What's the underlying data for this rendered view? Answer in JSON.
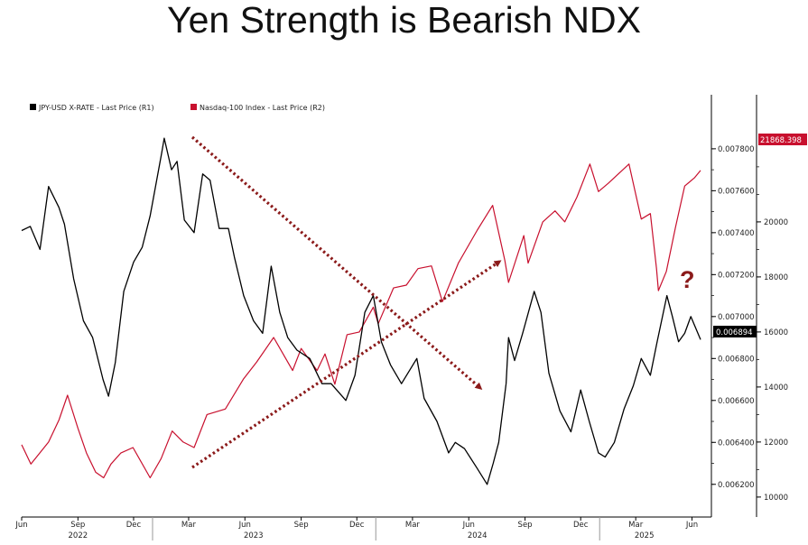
{
  "chart_data": {
    "type": "line",
    "title": "Yen Strength is Bearish NDX",
    "x_start": "2022-06-01",
    "x_end": "2025-06-15",
    "x_tick_labels": [
      {
        "date": "2022-06-01",
        "label": "Jun"
      },
      {
        "date": "2022-09-01",
        "label": "Sep"
      },
      {
        "date": "2022-12-01",
        "label": "Dec"
      },
      {
        "date": "2023-03-01",
        "label": "Mar"
      },
      {
        "date": "2023-06-01",
        "label": "Jun"
      },
      {
        "date": "2023-09-01",
        "label": "Sep"
      },
      {
        "date": "2023-12-01",
        "label": "Dec"
      },
      {
        "date": "2024-03-01",
        "label": "Mar"
      },
      {
        "date": "2024-06-01",
        "label": "Jun"
      },
      {
        "date": "2024-09-01",
        "label": "Sep"
      },
      {
        "date": "2024-12-01",
        "label": "Dec"
      },
      {
        "date": "2025-03-01",
        "label": "Mar"
      },
      {
        "date": "2025-06-01",
        "label": "Jun"
      }
    ],
    "year_labels": [
      {
        "date": "2022-09-01",
        "label": "2022"
      },
      {
        "date": "2023-06-15",
        "label": "2023"
      },
      {
        "date": "2024-06-15",
        "label": "2024"
      },
      {
        "date": "2025-03-15",
        "label": "2025"
      }
    ],
    "y_right_inner": {
      "ylim": [
        0.0061,
        0.00795
      ],
      "ticks": [
        "0.007800",
        "0.007600",
        "0.007400",
        "0.007200",
        "0.007000",
        "0.006800",
        "0.006600",
        "0.006400",
        "0.006200"
      ]
    },
    "y_right_outer": {
      "ylim": [
        9700,
        23800
      ],
      "ticks": [
        "20000",
        "18000",
        "16000",
        "14000",
        "12000",
        "10000"
      ]
    },
    "legend": [
      {
        "label": "JPY-USD X-RATE - Last Price (R1)",
        "color": "#000000"
      },
      {
        "label": "Nasdaq-100 Index - Last Price (R2)",
        "color": "#c8102e"
      }
    ],
    "last_values": {
      "jpy": "0.006894",
      "ndx": "21868.398"
    },
    "annotation": "?",
    "series": [
      {
        "name": "JPY-USD X-RATE - Last Price (R1)",
        "axis": "inner",
        "color": "#000000",
        "points": [
          [
            "2022-06-01",
            0.00741
          ],
          [
            "2022-06-15",
            0.00743
          ],
          [
            "2022-07-01",
            0.00732
          ],
          [
            "2022-07-15",
            0.00762
          ],
          [
            "2022-08-01",
            0.00752
          ],
          [
            "2022-08-10",
            0.00744
          ],
          [
            "2022-08-25",
            0.00718
          ],
          [
            "2022-09-10",
            0.00698
          ],
          [
            "2022-09-25",
            0.0069
          ],
          [
            "2022-10-12",
            0.0067
          ],
          [
            "2022-10-21",
            0.00662
          ],
          [
            "2022-11-01",
            0.00678
          ],
          [
            "2022-11-15",
            0.00712
          ],
          [
            "2022-12-01",
            0.00726
          ],
          [
            "2022-12-15",
            0.00733
          ],
          [
            "2022-12-28",
            0.00748
          ],
          [
            "2023-01-16",
            0.00778
          ],
          [
            "2023-01-20",
            0.00785
          ],
          [
            "2023-02-01",
            0.0077
          ],
          [
            "2023-02-10",
            0.00774
          ],
          [
            "2023-02-22",
            0.00746
          ],
          [
            "2023-03-10",
            0.0074
          ],
          [
            "2023-03-24",
            0.00768
          ],
          [
            "2023-04-05",
            0.00765
          ],
          [
            "2023-04-20",
            0.00742
          ],
          [
            "2023-05-05",
            0.00742
          ],
          [
            "2023-05-15",
            0.00728
          ],
          [
            "2023-05-30",
            0.0071
          ],
          [
            "2023-06-15",
            0.00698
          ],
          [
            "2023-06-30",
            0.00692
          ],
          [
            "2023-07-14",
            0.00724
          ],
          [
            "2023-07-28",
            0.00702
          ],
          [
            "2023-08-10",
            0.0069
          ],
          [
            "2023-08-25",
            0.00684
          ],
          [
            "2023-09-15",
            0.0068
          ],
          [
            "2023-10-05",
            0.00668
          ],
          [
            "2023-10-20",
            0.00668
          ],
          [
            "2023-11-13",
            0.0066
          ],
          [
            "2023-11-28",
            0.00672
          ],
          [
            "2023-12-14",
            0.00702
          ],
          [
            "2023-12-28",
            0.0071
          ],
          [
            "2024-01-10",
            0.00688
          ],
          [
            "2024-01-25",
            0.00677
          ],
          [
            "2024-02-12",
            0.00668
          ],
          [
            "2024-03-08",
            0.0068
          ],
          [
            "2024-03-20",
            0.00661
          ],
          [
            "2024-04-10",
            0.0065
          ],
          [
            "2024-04-29",
            0.00635
          ],
          [
            "2024-05-10",
            0.0064
          ],
          [
            "2024-05-25",
            0.00637
          ],
          [
            "2024-06-14",
            0.00628
          ],
          [
            "2024-07-01",
            0.0062
          ],
          [
            "2024-07-11",
            0.0063
          ],
          [
            "2024-07-20",
            0.0064
          ],
          [
            "2024-08-01",
            0.00668
          ],
          [
            "2024-08-05",
            0.0069
          ],
          [
            "2024-08-15",
            0.00679
          ],
          [
            "2024-08-28",
            0.00692
          ],
          [
            "2024-09-16",
            0.00712
          ],
          [
            "2024-09-27",
            0.00702
          ],
          [
            "2024-10-10",
            0.00673
          ],
          [
            "2024-10-28",
            0.00655
          ],
          [
            "2024-11-15",
            0.00645
          ],
          [
            "2024-12-01",
            0.00665
          ],
          [
            "2024-12-15",
            0.0065
          ],
          [
            "2024-12-30",
            0.00635
          ],
          [
            "2025-01-10",
            0.00633
          ],
          [
            "2025-01-25",
            0.0064
          ],
          [
            "2025-02-10",
            0.00656
          ],
          [
            "2025-02-25",
            0.00667
          ],
          [
            "2025-03-10",
            0.0068
          ],
          [
            "2025-03-25",
            0.00672
          ],
          [
            "2025-04-05",
            0.00688
          ],
          [
            "2025-04-21",
            0.0071
          ],
          [
            "2025-04-30",
            0.007
          ],
          [
            "2025-05-10",
            0.00688
          ],
          [
            "2025-05-20",
            0.00692
          ],
          [
            "2025-05-30",
            0.007
          ],
          [
            "2025-06-15",
            0.00689
          ]
        ]
      },
      {
        "name": "Nasdaq-100 Index - Last Price (R2)",
        "axis": "outer",
        "color": "#c8102e",
        "points": [
          [
            "2022-06-01",
            11900
          ],
          [
            "2022-06-16",
            11200
          ],
          [
            "2022-07-15",
            12000
          ],
          [
            "2022-08-01",
            12800
          ],
          [
            "2022-08-15",
            13700
          ],
          [
            "2022-09-01",
            12500
          ],
          [
            "2022-09-15",
            11600
          ],
          [
            "2022-09-30",
            10900
          ],
          [
            "2022-10-13",
            10700
          ],
          [
            "2022-10-25",
            11200
          ],
          [
            "2022-11-10",
            11600
          ],
          [
            "2022-11-30",
            11800
          ],
          [
            "2022-12-28",
            10700
          ],
          [
            "2023-01-15",
            11400
          ],
          [
            "2023-02-02",
            12400
          ],
          [
            "2023-02-20",
            12000
          ],
          [
            "2023-03-10",
            11800
          ],
          [
            "2023-03-31",
            13000
          ],
          [
            "2023-04-30",
            13200
          ],
          [
            "2023-05-30",
            14300
          ],
          [
            "2023-06-20",
            14900
          ],
          [
            "2023-07-18",
            15800
          ],
          [
            "2023-08-18",
            14600
          ],
          [
            "2023-09-01",
            15400
          ],
          [
            "2023-09-27",
            14600
          ],
          [
            "2023-10-10",
            15200
          ],
          [
            "2023-10-26",
            14100
          ],
          [
            "2023-11-15",
            15900
          ],
          [
            "2023-12-05",
            16000
          ],
          [
            "2023-12-28",
            16900
          ],
          [
            "2024-01-05",
            16300
          ],
          [
            "2024-01-30",
            17600
          ],
          [
            "2024-02-20",
            17700
          ],
          [
            "2024-03-10",
            18300
          ],
          [
            "2024-04-01",
            18400
          ],
          [
            "2024-04-19",
            17100
          ],
          [
            "2024-05-15",
            18500
          ],
          [
            "2024-06-15",
            19700
          ],
          [
            "2024-07-10",
            20600
          ],
          [
            "2024-07-30",
            18600
          ],
          [
            "2024-08-05",
            17800
          ],
          [
            "2024-08-30",
            19500
          ],
          [
            "2024-09-06",
            18500
          ],
          [
            "2024-09-30",
            20000
          ],
          [
            "2024-10-20",
            20400
          ],
          [
            "2024-11-05",
            20000
          ],
          [
            "2024-11-25",
            20900
          ],
          [
            "2024-12-16",
            22100
          ],
          [
            "2024-12-30",
            21100
          ],
          [
            "2025-01-15",
            21400
          ],
          [
            "2025-02-18",
            22100
          ],
          [
            "2025-03-10",
            20100
          ],
          [
            "2025-03-25",
            20300
          ],
          [
            "2025-04-04",
            18300
          ],
          [
            "2025-04-07",
            17500
          ],
          [
            "2025-04-20",
            18200
          ],
          [
            "2025-05-05",
            19800
          ],
          [
            "2025-05-20",
            21300
          ],
          [
            "2025-06-05",
            21600
          ],
          [
            "2025-06-15",
            21868
          ]
        ]
      }
    ]
  }
}
